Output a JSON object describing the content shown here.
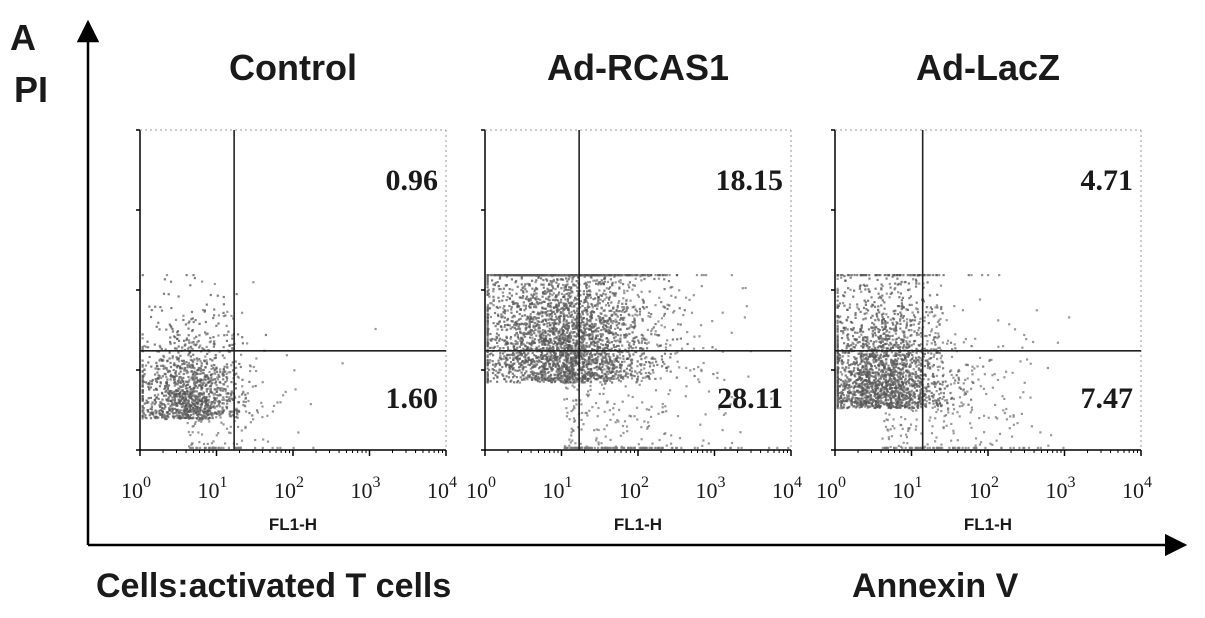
{
  "figure": {
    "panel_letter": "A",
    "y_axis_label": "PI",
    "x_axis_label": "Annexin V",
    "caption": "Cells:activated T cells"
  },
  "colors": {
    "ink": "#1a1a1a",
    "dots": "#555555",
    "dense": "#6e6e6e",
    "axis": "#000000"
  },
  "chart_data": [
    {
      "type": "scatter",
      "title": "Control",
      "xlabel": "FL1-H",
      "x_scale": "log",
      "xlim": [
        1,
        10000
      ],
      "x_ticks": [
        "10^0",
        "10^1",
        "10^2",
        "10^3",
        "10^4"
      ],
      "quadrant_x": 17,
      "quadrant_pct": {
        "upper_right": "0.96",
        "lower_right": "1.60"
      },
      "dot_cloud": {
        "center_x": 4,
        "center_y": 0.12,
        "spread_x": 0.32,
        "spread_y": 0.1,
        "count": 1400,
        "tail_x": 60
      }
    },
    {
      "type": "scatter",
      "title": "Ad-RCAS1",
      "xlabel": "FL1-H",
      "x_scale": "log",
      "xlim": [
        1,
        10000
      ],
      "x_ticks": [
        "10^0",
        "10^1",
        "10^2",
        "10^3",
        "10^4"
      ],
      "quadrant_x": 17,
      "quadrant_pct": {
        "upper_right": "18.15",
        "lower_right": "28.11"
      },
      "dot_cloud": {
        "center_x": 10,
        "center_y": 0.25,
        "spread_x": 0.55,
        "spread_y": 0.18,
        "count": 3600,
        "tail_x": 600
      }
    },
    {
      "type": "scatter",
      "title": "Ad-LacZ",
      "xlabel": "FL1-H",
      "x_scale": "log",
      "xlim": [
        1,
        10000
      ],
      "x_ticks": [
        "10^0",
        "10^1",
        "10^2",
        "10^3",
        "10^4"
      ],
      "quadrant_x": 14,
      "quadrant_pct": {
        "upper_right": "4.71",
        "lower_right": "7.47"
      },
      "dot_cloud": {
        "center_x": 4,
        "center_y": 0.16,
        "spread_x": 0.4,
        "spread_y": 0.13,
        "count": 2400,
        "tail_x": 200
      }
    }
  ]
}
